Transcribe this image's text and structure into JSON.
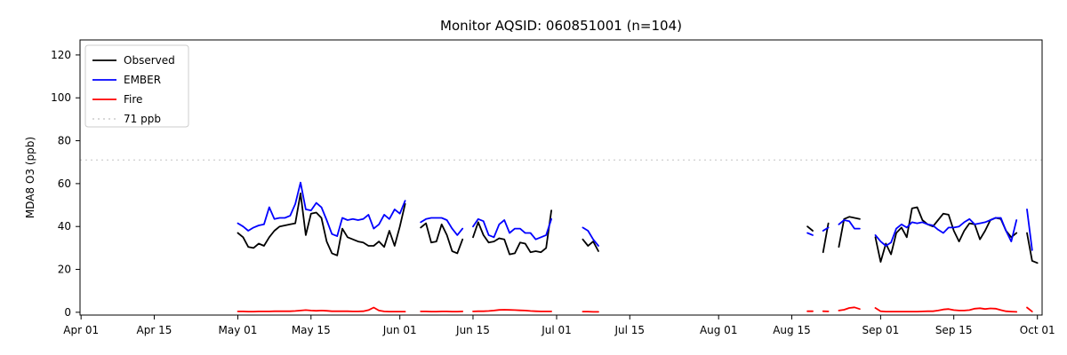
{
  "chart_data": {
    "type": "line",
    "title": "Monitor AQSID: 060851001 (n=104)",
    "xlabel": "",
    "ylabel": "MDA8 O3 (ppb)",
    "ylim": [
      -1.3,
      127
    ],
    "yticks": [
      0,
      20,
      40,
      60,
      80,
      100,
      120
    ],
    "grid": false,
    "x_axis": {
      "unit": "days since Apr 01",
      "ticks": [
        {
          "label": "Apr 01",
          "day": 0
        },
        {
          "label": "Apr 15",
          "day": 14
        },
        {
          "label": "May 01",
          "day": 30
        },
        {
          "label": "May 15",
          "day": 44
        },
        {
          "label": "Jun 01",
          "day": 61
        },
        {
          "label": "Jun 15",
          "day": 75
        },
        {
          "label": "Jul 01",
          "day": 91
        },
        {
          "label": "Jul 15",
          "day": 105
        },
        {
          "label": "Aug 01",
          "day": 122
        },
        {
          "label": "Aug 15",
          "day": 136
        },
        {
          "label": "Sep 01",
          "day": 153
        },
        {
          "label": "Sep 15",
          "day": 167
        },
        {
          "label": "Oct 01",
          "day": 183
        }
      ]
    },
    "threshold_line": {
      "value": 71,
      "label": "71 ppb",
      "color": "#d3d3d3",
      "style": "dotted"
    },
    "legend": {
      "position": "upper-left",
      "entries": [
        {
          "label": "Observed",
          "color": "#000000",
          "dash": ""
        },
        {
          "label": "EMBER",
          "color": "#0000ff",
          "dash": ""
        },
        {
          "label": "Fire",
          "color": "#ff0000",
          "dash": ""
        },
        {
          "label": "71 ppb",
          "color": "#d3d3d3",
          "dash": "2 4"
        }
      ]
    },
    "series": [
      {
        "name": "Observed",
        "color": "#000000",
        "segments": [
          {
            "start_day": 30,
            "start_date": "May 01",
            "values": [
              37,
              35,
              30.5,
              30,
              32,
              31,
              35,
              38,
              40,
              40.5,
              41,
              41.5,
              55.5,
              36,
              46,
              46.5,
              44,
              33,
              27.5,
              26.5,
              39,
              35,
              34,
              33,
              32.5,
              31,
              31,
              33,
              30.5,
              38,
              31,
              40,
              50.5
            ]
          },
          {
            "start_day": 65,
            "start_date": "Jun 05",
            "values": [
              39.5,
              41.5,
              32.5,
              33,
              41,
              36,
              28.5,
              27.5,
              34
            ]
          },
          {
            "start_day": 75,
            "start_date": "Jun 15",
            "values": [
              35,
              42,
              36,
              32.5,
              33,
              34.5,
              34,
              27,
              27.5,
              32.5,
              32,
              28,
              28.5,
              28,
              30,
              47.5
            ]
          },
          {
            "start_day": 96,
            "start_date": "Jul 06",
            "values": [
              34,
              31,
              33,
              28.5
            ]
          },
          {
            "start_day": 139,
            "start_date": "Aug 18",
            "values": [
              40,
              38
            ]
          },
          {
            "start_day": 142,
            "start_date": "Aug 21",
            "values": [
              28,
              41.5
            ]
          },
          {
            "start_day": 145,
            "start_date": "Aug 24",
            "values": [
              30.5,
              43.5,
              44.5,
              44,
              43.5
            ]
          },
          {
            "start_day": 152,
            "start_date": "Aug 31",
            "values": [
              35,
              23.5,
              32,
              27,
              37,
              39.5,
              35,
              48.5,
              49,
              43,
              41,
              40,
              43,
              46,
              45.5,
              38,
              33,
              38,
              41.5,
              41,
              34,
              38,
              43,
              44,
              43.5,
              38,
              35,
              37
            ]
          },
          {
            "start_day": 181,
            "start_date": "Sep 29",
            "values": [
              37,
              24,
              23
            ]
          }
        ]
      },
      {
        "name": "EMBER",
        "color": "#0000ff",
        "segments": [
          {
            "start_day": 30,
            "start_date": "May 01",
            "values": [
              41.5,
              40,
              38,
              39.5,
              40.5,
              41,
              49,
              43.5,
              44,
              44,
              45,
              50.5,
              60.5,
              48,
              47.5,
              51,
              49,
              43,
              36.5,
              35.5,
              44,
              43,
              43.5,
              43,
              43.5,
              45.5,
              39,
              41,
              45.5,
              43.5,
              48,
              46,
              52
            ]
          },
          {
            "start_day": 65,
            "start_date": "Jun 05",
            "values": [
              42,
              43.5,
              44,
              44,
              44,
              43,
              39,
              36,
              39
            ]
          },
          {
            "start_day": 75,
            "start_date": "Jun 15",
            "values": [
              40,
              43.5,
              42.5,
              36,
              35,
              41,
              43,
              37,
              39,
              39,
              37,
              37,
              34,
              35,
              36,
              43.5
            ]
          },
          {
            "start_day": 96,
            "start_date": "Jul 06",
            "values": [
              39.5,
              38,
              34,
              31
            ]
          },
          {
            "start_day": 139,
            "start_date": "Aug 18",
            "values": [
              37,
              36
            ]
          },
          {
            "start_day": 142,
            "start_date": "Aug 21",
            "values": [
              38,
              39.5
            ]
          },
          {
            "start_day": 145,
            "start_date": "Aug 24",
            "values": [
              41,
              43,
              42.5,
              39,
              39
            ]
          },
          {
            "start_day": 152,
            "start_date": "Aug 31",
            "values": [
              36,
              33,
              31,
              32.5,
              39,
              41,
              39.5,
              42,
              41.5,
              42,
              41,
              40.5,
              38.5,
              37,
              39.5,
              39.5,
              40,
              42,
              43.5,
              41,
              41.5,
              42,
              43,
              44,
              44,
              38,
              33,
              43
            ]
          },
          {
            "start_day": 181,
            "start_date": "Sep 29",
            "values": [
              48,
              29
            ]
          }
        ]
      },
      {
        "name": "Fire",
        "color": "#ff0000",
        "segments": [
          {
            "start_day": 30,
            "start_date": "May 01",
            "values": [
              0.4,
              0.4,
              0.3,
              0.3,
              0.4,
              0.4,
              0.4,
              0.5,
              0.5,
              0.5,
              0.5,
              0.6,
              0.8,
              1.0,
              0.8,
              0.7,
              0.8,
              0.7,
              0.5,
              0.5,
              0.5,
              0.5,
              0.4,
              0.4,
              0.5,
              1.0,
              2.2,
              0.8,
              0.4,
              0.3,
              0.3,
              0.3,
              0.3
            ]
          },
          {
            "start_day": 65,
            "start_date": "Jun 05",
            "values": [
              0.4,
              0.4,
              0.3,
              0.3,
              0.4,
              0.4,
              0.3,
              0.3,
              0.4
            ]
          },
          {
            "start_day": 75,
            "start_date": "Jun 15",
            "values": [
              0.4,
              0.5,
              0.5,
              0.6,
              0.8,
              1.1,
              1.2,
              1.1,
              1.0,
              0.9,
              0.8,
              0.6,
              0.5,
              0.4,
              0.4,
              0.4
            ]
          },
          {
            "start_day": 96,
            "start_date": "Jul 06",
            "values": [
              0.3,
              0.3,
              0.2,
              0.2
            ]
          },
          {
            "start_day": 139,
            "start_date": "Aug 18",
            "values": [
              0.5,
              0.5
            ]
          },
          {
            "start_day": 142,
            "start_date": "Aug 21",
            "values": [
              0.5,
              0.4
            ]
          },
          {
            "start_day": 145,
            "start_date": "Aug 24",
            "values": [
              0.8,
              1.2,
              2.0,
              2.3,
              1.5
            ]
          },
          {
            "start_day": 152,
            "start_date": "Aug 31",
            "values": [
              2.0,
              0.5,
              0.3,
              0.3,
              0.3,
              0.3,
              0.3,
              0.3,
              0.3,
              0.4,
              0.5,
              0.5,
              0.8,
              1.3,
              1.5,
              1.0,
              0.8,
              0.8,
              1.0,
              1.7,
              1.9,
              1.5,
              1.8,
              1.7,
              1.0,
              0.5,
              0.3,
              0.2
            ]
          },
          {
            "start_day": 181,
            "start_date": "Sep 29",
            "values": [
              2.2,
              0.3
            ]
          }
        ]
      }
    ]
  }
}
